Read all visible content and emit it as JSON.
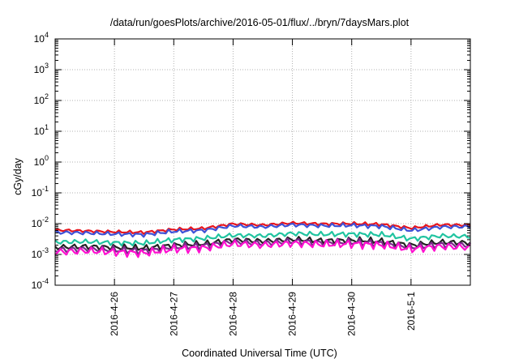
{
  "chart_data": {
    "type": "line",
    "title": "/data/run/goesPlots/archive/2016-05-01/flux/../bryn/7daysMars.plot",
    "xlabel": "Coordinated Universal Time (UTC)",
    "ylabel": "cGy/day",
    "yscale": "log",
    "ylim": [
      0.0001,
      10000
    ],
    "xlim": [
      "2016-04-25T00:00",
      "2016-05-02T00:00"
    ],
    "grid": true,
    "legend": "none",
    "y_ticks": [
      {
        "base": "10",
        "exp": "-4"
      },
      {
        "base": "10",
        "exp": "-3"
      },
      {
        "base": "10",
        "exp": "-2"
      },
      {
        "base": "10",
        "exp": "-1"
      },
      {
        "base": "10",
        "exp": "0"
      },
      {
        "base": "10",
        "exp": "1"
      },
      {
        "base": "10",
        "exp": "2"
      },
      {
        "base": "10",
        "exp": "3"
      },
      {
        "base": "10",
        "exp": "4"
      }
    ],
    "x_ticks": [
      "2016-4-26",
      "2016-4-27",
      "2016-4-28",
      "2016-4-29",
      "2016-4-30",
      "2016-5-1"
    ],
    "x": [
      "2016-04-25T00:00",
      "2016-04-25T12:00",
      "2016-04-26T00:00",
      "2016-04-26T12:00",
      "2016-04-27T00:00",
      "2016-04-27T12:00",
      "2016-04-28T00:00",
      "2016-04-28T12:00",
      "2016-04-29T00:00",
      "2016-04-29T12:00",
      "2016-04-30T00:00",
      "2016-04-30T12:00",
      "2016-05-01T00:00",
      "2016-05-01T12:00",
      "2016-05-02T00:00"
    ],
    "series": [
      {
        "color": "#e8141c",
        "values": [
          0.0062,
          0.0058,
          0.0054,
          0.0052,
          0.0065,
          0.007,
          0.0098,
          0.009,
          0.0105,
          0.0098,
          0.01,
          0.0095,
          0.0072,
          0.0092,
          0.009
        ]
      },
      {
        "color": "#3f51d6",
        "values": [
          0.0052,
          0.005,
          0.0046,
          0.0044,
          0.0056,
          0.006,
          0.0085,
          0.0078,
          0.0092,
          0.0085,
          0.0088,
          0.0082,
          0.006,
          0.0078,
          0.008
        ]
      },
      {
        "color": "#20c4a0",
        "values": [
          0.0025,
          0.0026,
          0.0024,
          0.0023,
          0.003,
          0.0033,
          0.0042,
          0.004,
          0.0048,
          0.0045,
          0.0046,
          0.0044,
          0.0032,
          0.004,
          0.0038
        ]
      },
      {
        "color": "#222222",
        "values": [
          0.0017,
          0.0018,
          0.0017,
          0.0016,
          0.002,
          0.0022,
          0.003,
          0.0027,
          0.0031,
          0.0028,
          0.0029,
          0.0027,
          0.002,
          0.0025,
          0.0024
        ]
      },
      {
        "color": "#7a2a8a",
        "values": [
          0.0014,
          0.0015,
          0.0014,
          0.0013,
          0.0017,
          0.0019,
          0.0026,
          0.0023,
          0.0027,
          0.0024,
          0.0025,
          0.0023,
          0.0017,
          0.0021,
          0.002
        ]
      },
      {
        "color": "#ff10d0",
        "values": [
          0.0012,
          0.0013,
          0.0012,
          0.0011,
          0.0015,
          0.0016,
          0.0022,
          0.002,
          0.0023,
          0.0021,
          0.0022,
          0.002,
          0.0015,
          0.0018,
          0.0017
        ]
      }
    ]
  }
}
